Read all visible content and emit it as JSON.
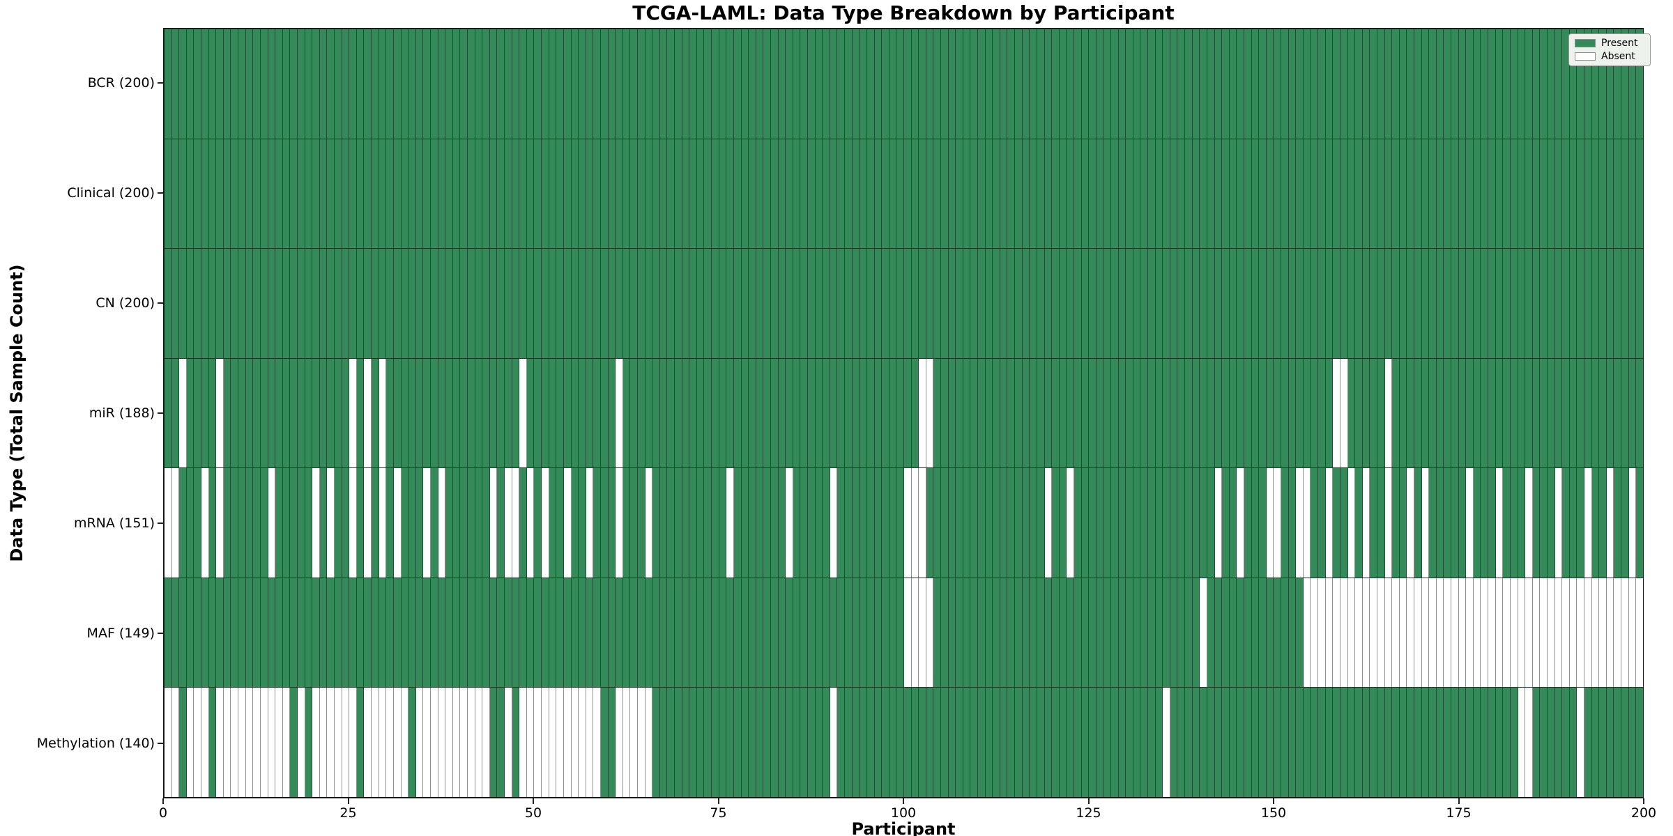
{
  "title": "TCGA-LAML: Data Type Breakdown by Participant",
  "x_axis": {
    "label": "Participant",
    "ticks": [
      0,
      25,
      50,
      75,
      100,
      125,
      150,
      175,
      200
    ],
    "range": [
      0,
      200
    ]
  },
  "y_axis": {
    "label": "Data Type (Total Sample Count)"
  },
  "legend": {
    "items": [
      {
        "label": "Present",
        "color": "#348a58"
      },
      {
        "label": "Absent",
        "color": "#ffffff"
      }
    ]
  },
  "colors": {
    "present_fill": "#348a58",
    "present_border": "#1d5033",
    "absent_fill": "#ffffff",
    "absent_border": "#8f8f8f",
    "row_separator": "#17361f",
    "plot_border": "#1a1a1a",
    "legend_background": "#edf2ed"
  },
  "chart_data": {
    "type": "heatmap",
    "title": "TCGA-LAML: Data Type Breakdown by Participant",
    "xlabel": "Participant",
    "ylabel": "Data Type (Total Sample Count)",
    "x_range": [
      0,
      200
    ],
    "n_participants": 200,
    "legend_entries": [
      "Present",
      "Absent"
    ],
    "rows": [
      {
        "label": "BCR (200)",
        "data_type": "BCR",
        "total_sample_count": 200,
        "absent_participants": []
      },
      {
        "label": "Clinical (200)",
        "data_type": "Clinical",
        "total_sample_count": 200,
        "absent_participants": []
      },
      {
        "label": "CN (200)",
        "data_type": "CN",
        "total_sample_count": 200,
        "absent_participants": []
      },
      {
        "label": "miR (188)",
        "data_type": "miR",
        "total_sample_count": 188,
        "absent_participants": [
          2,
          7,
          25,
          27,
          29,
          48,
          61,
          102,
          103,
          158,
          159,
          165
        ]
      },
      {
        "label": "mRNA (151)",
        "data_type": "mRNA",
        "total_sample_count": 151,
        "absent_participants": [
          0,
          1,
          5,
          7,
          14,
          20,
          22,
          25,
          27,
          29,
          31,
          35,
          37,
          44,
          46,
          47,
          49,
          51,
          54,
          57,
          61,
          65,
          76,
          84,
          90,
          100,
          101,
          102,
          119,
          122,
          142,
          145,
          149,
          150,
          153,
          154,
          157,
          160,
          162,
          165,
          168,
          170,
          176,
          180,
          184,
          188,
          192,
          195,
          198
        ]
      },
      {
        "label": "MAF (149)",
        "data_type": "MAF",
        "total_sample_count": 149,
        "absent_participants": [
          100,
          101,
          102,
          103,
          140,
          154,
          155,
          156,
          157,
          158,
          159,
          160,
          161,
          162,
          163,
          164,
          165,
          166,
          167,
          168,
          169,
          170,
          171,
          172,
          173,
          174,
          175,
          176,
          177,
          178,
          179,
          180,
          181,
          182,
          183,
          184,
          185,
          186,
          187,
          188,
          189,
          190,
          191,
          192,
          193,
          194,
          195,
          196,
          197,
          198,
          199
        ]
      },
      {
        "label": "Methylation (140)",
        "data_type": "Methylation",
        "total_sample_count": 140,
        "absent_participants": [
          0,
          1,
          3,
          4,
          5,
          7,
          8,
          9,
          10,
          11,
          12,
          13,
          14,
          15,
          16,
          18,
          20,
          21,
          22,
          23,
          24,
          25,
          27,
          28,
          29,
          30,
          31,
          32,
          34,
          35,
          36,
          37,
          38,
          39,
          40,
          41,
          42,
          43,
          46,
          48,
          49,
          50,
          51,
          52,
          53,
          54,
          55,
          56,
          57,
          58,
          61,
          62,
          63,
          64,
          65,
          90,
          135,
          183,
          184,
          191
        ]
      }
    ]
  }
}
